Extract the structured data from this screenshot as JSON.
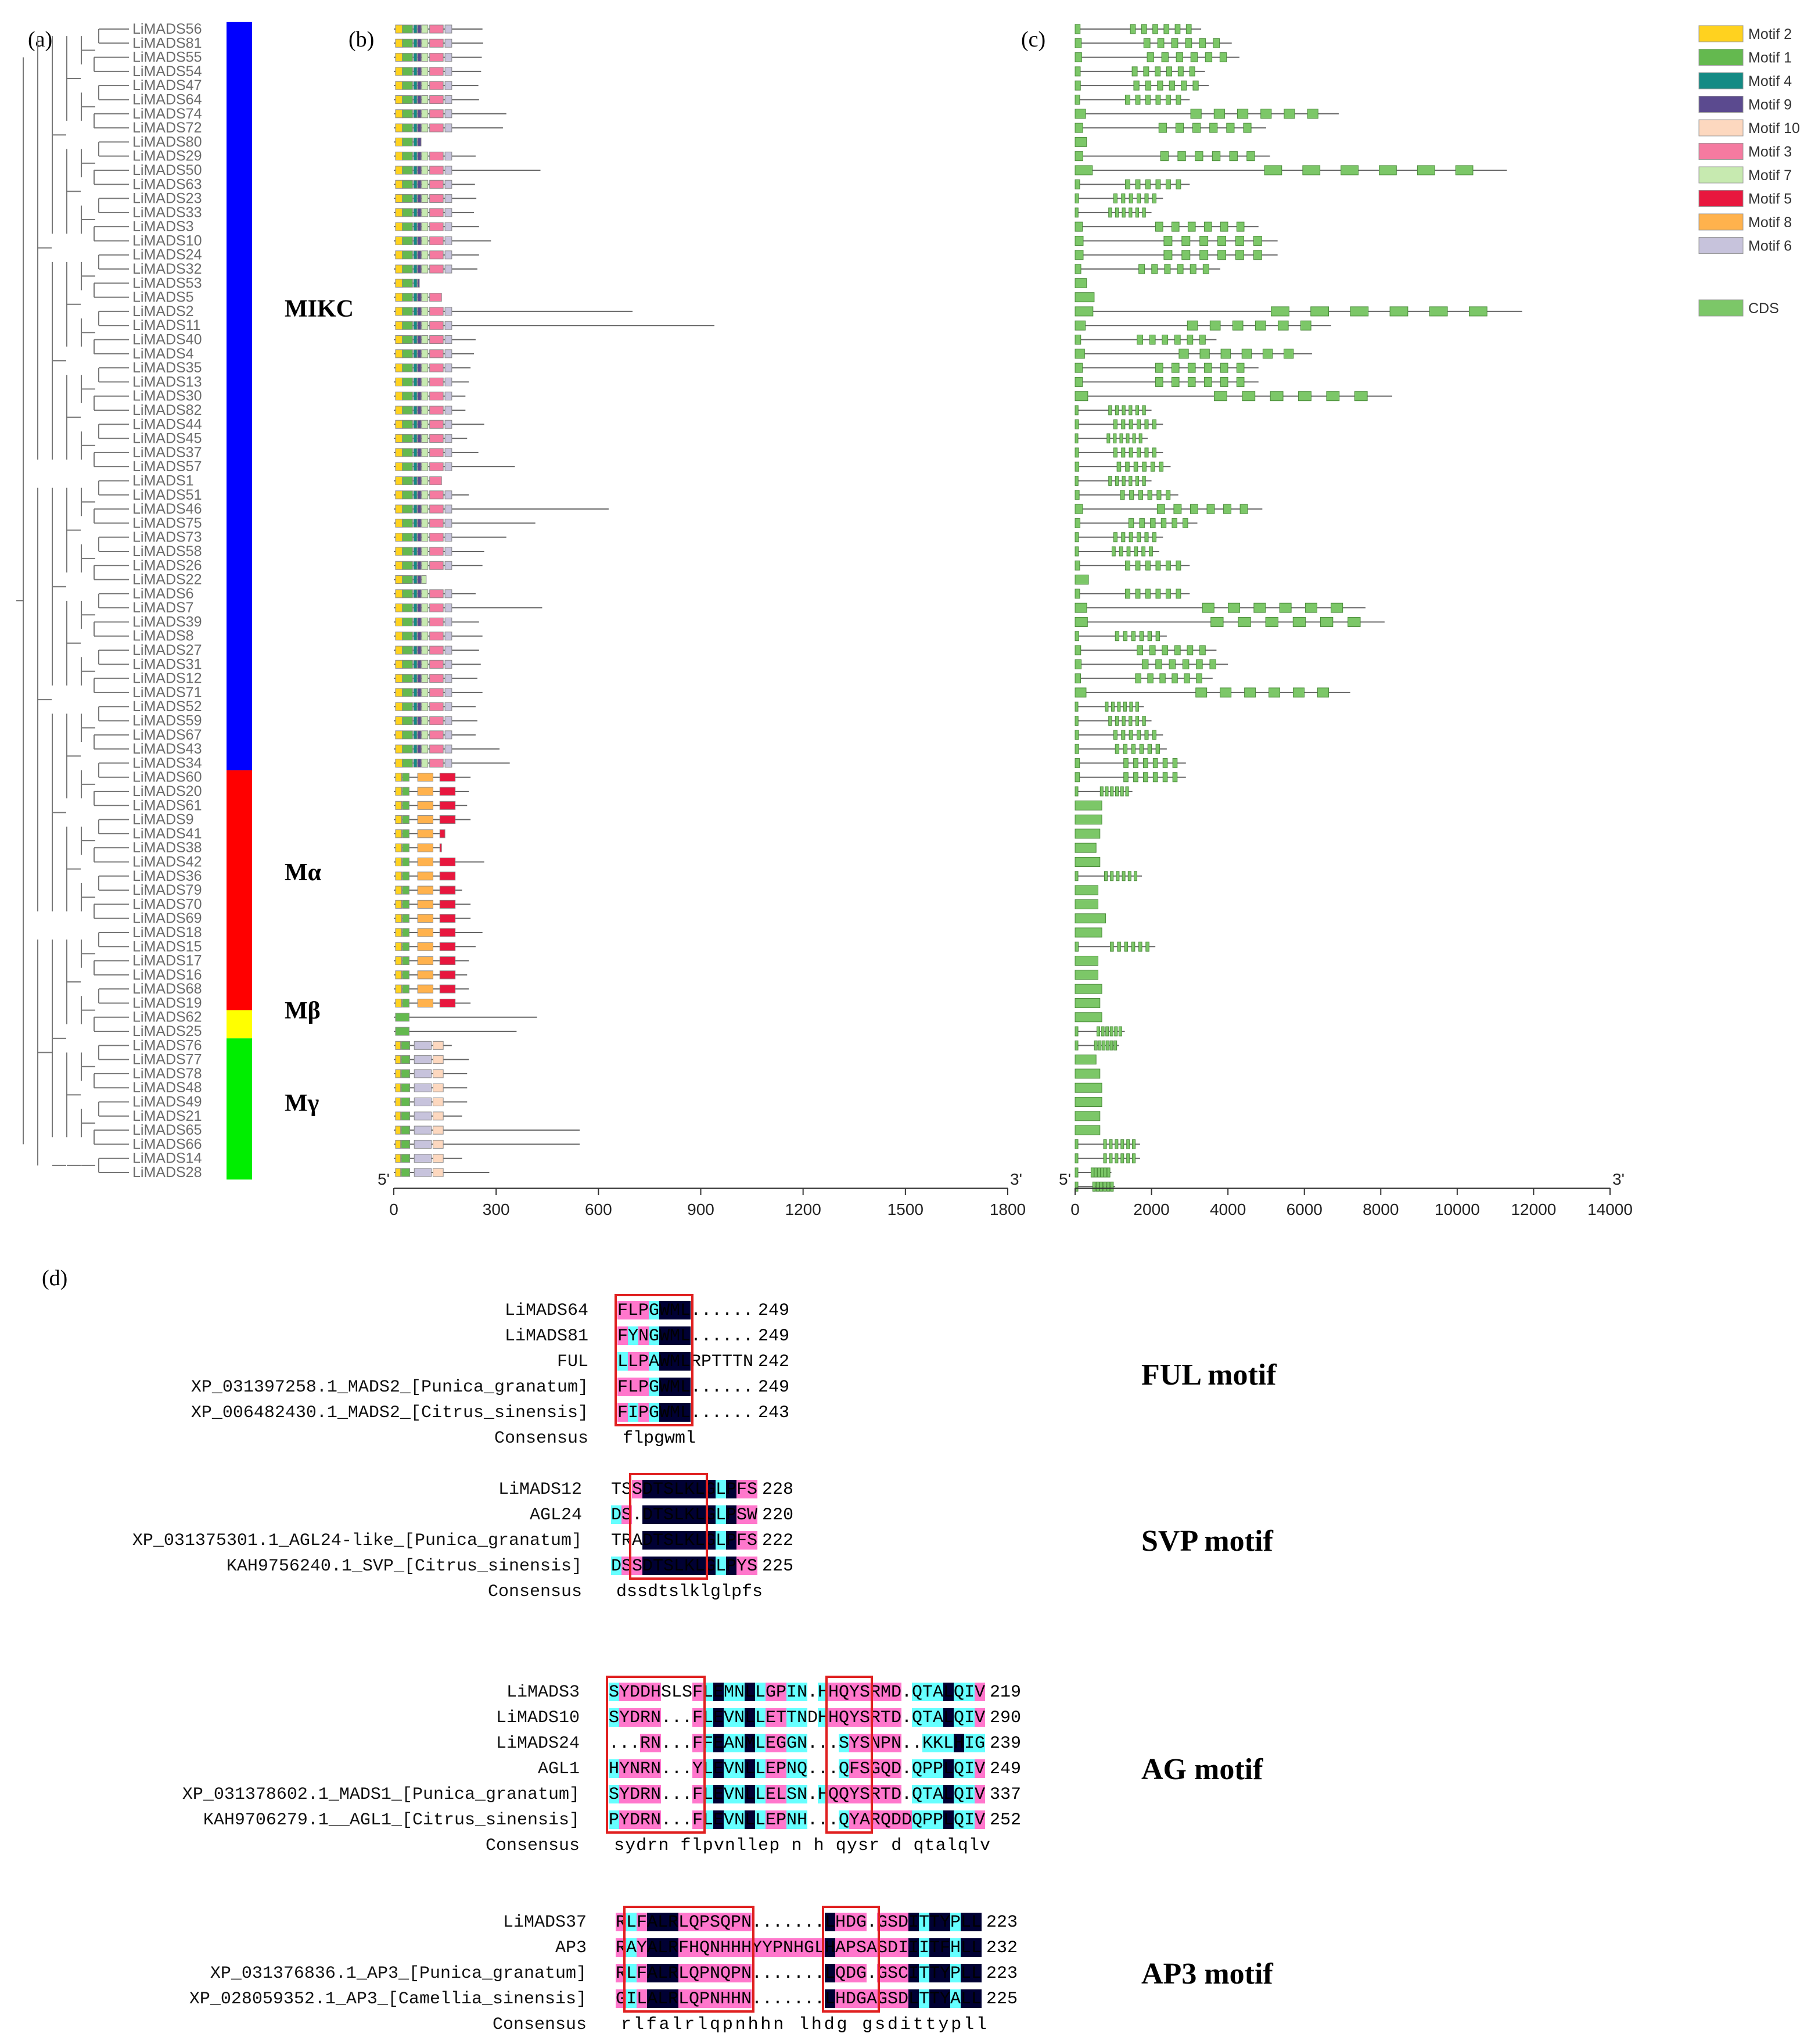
{
  "panels": {
    "a": "(a)",
    "b": "(b)",
    "c": "(c)",
    "d": "(d)"
  },
  "genes": [
    "LiMADS56",
    "LiMADS81",
    "LiMADS55",
    "LiMADS54",
    "LiMADS47",
    "LiMADS64",
    "LiMADS74",
    "LiMADS72",
    "LiMADS80",
    "LiMADS29",
    "LiMADS50",
    "LiMADS63",
    "LiMADS23",
    "LiMADS33",
    "LiMADS3",
    "LiMADS10",
    "LiMADS24",
    "LiMADS32",
    "LiMADS53",
    "LiMADS5",
    "LiMADS2",
    "LiMADS11",
    "LiMADS40",
    "LiMADS4",
    "LiMADS35",
    "LiMADS13",
    "LiMADS30",
    "LiMADS82",
    "LiMADS44",
    "LiMADS45",
    "LiMADS37",
    "LiMADS57",
    "LiMADS1",
    "LiMADS51",
    "LiMADS46",
    "LiMADS75",
    "LiMADS73",
    "LiMADS58",
    "LiMADS26",
    "LiMADS22",
    "LiMADS6",
    "LiMADS7",
    "LiMADS39",
    "LiMADS8",
    "LiMADS27",
    "LiMADS31",
    "LiMADS12",
    "LiMADS71",
    "LiMADS52",
    "LiMADS59",
    "LiMADS67",
    "LiMADS43",
    "LiMADS34",
    "LiMADS60",
    "LiMADS20",
    "LiMADS61",
    "LiMADS9",
    "LiMADS41",
    "LiMADS38",
    "LiMADS42",
    "LiMADS36",
    "LiMADS79",
    "LiMADS70",
    "LiMADS69",
    "LiMADS18",
    "LiMADS15",
    "LiMADS17",
    "LiMADS16",
    "LiMADS68",
    "LiMADS19",
    "LiMADS62",
    "LiMADS25",
    "LiMADS76",
    "LiMADS77",
    "LiMADS78",
    "LiMADS48",
    "LiMADS49",
    "LiMADS21",
    "LiMADS65",
    "LiMADS66",
    "LiMADS14",
    "LiMADS28"
  ],
  "groups": [
    {
      "name": "MIKC",
      "start": 0,
      "end": 52,
      "color": "#0000ff"
    },
    {
      "name": "Mα",
      "start": 53,
      "end": 69,
      "color": "#ff0000"
    },
    {
      "name": "Mβ",
      "start": 70,
      "end": 71,
      "color": "#ffff00"
    },
    {
      "name": "Mγ",
      "start": 72,
      "end": 81,
      "color": "#00ee00"
    }
  ],
  "protein_lengths": [
    260,
    262,
    258,
    256,
    248,
    250,
    330,
    320,
    80,
    240,
    430,
    238,
    242,
    235,
    250,
    285,
    250,
    245,
    75,
    140,
    700,
    940,
    240,
    235,
    225,
    220,
    210,
    210,
    265,
    215,
    248,
    355,
    140,
    220,
    630,
    415,
    330,
    265,
    260,
    95,
    240,
    435,
    250,
    260,
    250,
    255,
    245,
    260,
    240,
    245,
    240,
    310,
    340,
    225,
    220,
    215,
    225,
    150,
    140,
    265,
    180,
    200,
    225,
    225,
    260,
    240,
    220,
    215,
    220,
    225,
    420,
    360,
    170,
    220,
    215,
    215,
    215,
    200,
    545,
    545,
    200,
    280
  ],
  "gene_lengths": [
    3300,
    4100,
    4300,
    3400,
    3500,
    3000,
    6900,
    5000,
    300,
    5100,
    11300,
    3000,
    2300,
    2000,
    4800,
    5300,
    5300,
    3800,
    300,
    500,
    11700,
    6700,
    3700,
    6200,
    4800,
    4800,
    8300,
    2000,
    2300,
    1900,
    2300,
    2500,
    2000,
    2700,
    4900,
    3200,
    2300,
    2200,
    3000,
    350,
    3000,
    7600,
    8100,
    2400,
    3700,
    4000,
    3600,
    7200,
    1800,
    2000,
    2300,
    2400,
    2900,
    2900,
    1500,
    700,
    700,
    650,
    550,
    650,
    1750,
    600,
    600,
    800,
    700,
    2100,
    600,
    600,
    700,
    650,
    700,
    1300,
    1150,
    550,
    650,
    700,
    700,
    650,
    650,
    1700,
    1700,
    950,
    1050
  ],
  "cds_axis": {
    "ticks": [
      0,
      2000,
      4000,
      6000,
      8000,
      10000,
      12000,
      14000
    ],
    "max": 14000,
    "start_label": "5'",
    "end_label": "3'"
  },
  "protein_axis": {
    "ticks": [
      0,
      300,
      600,
      900,
      1200,
      1500,
      1800
    ],
    "max": 1800,
    "start_label": "5'",
    "end_label": "3'"
  },
  "legend": [
    {
      "name": "Motif 2",
      "color": "#ffd21f"
    },
    {
      "name": "Motif 1",
      "color": "#64b94f"
    },
    {
      "name": "Motif 4",
      "color": "#138a84"
    },
    {
      "name": "Motif 9",
      "color": "#5b4a8f"
    },
    {
      "name": "Motif 10",
      "color": "#fdd8bf"
    },
    {
      "name": "Motif 3",
      "color": "#f57aa0"
    },
    {
      "name": "Motif 7",
      "color": "#c7eab0"
    },
    {
      "name": "Motif 5",
      "color": "#e8173e"
    },
    {
      "name": "Motif 8",
      "color": "#ffb24d"
    },
    {
      "name": "Motif 6",
      "color": "#c7c3dc"
    },
    {
      "name": "CDS",
      "color": "#7cc768"
    }
  ],
  "alignments": [
    {
      "title": "FUL motif",
      "rows": [
        {
          "name": "LiMADS64",
          "seq": "FLPGWML......",
          "num": "249"
        },
        {
          "name": "LiMADS81",
          "seq": "FYNGWML......",
          "num": "249"
        },
        {
          "name": "FUL",
          "seq": "LLPAWMLRPTTTN",
          "num": "242"
        },
        {
          "name": "XP_031397258.1_MADS2_[Punica_granatum]",
          "seq": "FLPGWML......",
          "num": "249"
        },
        {
          "name": "XP_006482430.1_MADS2_[Citrus_sinensis]",
          "seq": "FIPGWML......",
          "num": "243"
        }
      ],
      "consensus_label": "Consensus",
      "consensus": "flpgwml",
      "colors": [
        "PPPCDDD",
        "PCPCDDD",
        "CPPCDDD",
        "PPPCDDD",
        "PCPCDDD"
      ]
    },
    {
      "title": "SVP motif",
      "rows": [
        {
          "name": "LiMADS12",
          "seq": "TSSDTSLKLGLPFS",
          "num": "228"
        },
        {
          "name": "AGL24",
          "seq": "DS.DTSLKLGLPSW",
          "num": "220"
        },
        {
          "name": "XP_031375301.1_AGL24-like_[Punica_granatum]",
          "seq": "TRADTSLKLGLPFS",
          "num": "222"
        },
        {
          "name": "KAH9756240.1_SVP_[Citrus_sinensis]",
          "seq": "DSSDTSLKLGLPYS",
          "num": "225"
        }
      ],
      "consensus_label": "Consensus",
      "consensus": "dssdtslklglpfs",
      "colors": [
        "..PDDDDDDDCDPP",
        "CP.DDDDDDDCDPP",
        "...DDDDDDDCDPP",
        "CPPDDDDDDDCDPP"
      ]
    },
    {
      "title": "AG motif",
      "rows": [
        {
          "name": "LiMADS3",
          "seq": "SYDDHSLSFLEMNLLGPIN.HHQYSRMD.QTALQIV",
          "num": "219"
        },
        {
          "name": "LiMADS10",
          "seq": "SYDRN...FLEVNLLETTNDHHQYSRTD.QTALQIV",
          "num": "290"
        },
        {
          "name": "LiMADS24",
          "seq": "...RN...FFEANMLEGGN...SYSNPN..KKLHIG",
          "num": "239"
        },
        {
          "name": "AGL1",
          "seq": "HYNRN...YLEVNLLEPNQ...QFSGQD.QPPLQIV",
          "num": "249"
        },
        {
          "name": "XP_031378602.1_MADS1_[Punica_granatum]",
          "seq": "SYDRN...FLEVNLLELSN.HQQYSRTD.QTALQIV",
          "num": "337"
        },
        {
          "name": "KAH9706279.1__AGL1_[Citrus_sinensis]",
          "seq": "PYDRN...FLEVNLLEPNH...QYARQDDQPPLQIV",
          "num": "252"
        }
      ],
      "consensus_label": "Consensus",
      "consensus": "sydrn   flpvnllep n h qysr d qtalqlv",
      "colors": [
        "CPPPP...PCDCCDCPPCC.CPPPPPPP.CCCDCCP",
        "CPPPP...PCDCCDCPPCC.CPPPPPPP.CCCDCCP",
        "...PP...PCDCCDCPPCC...CPPPPP..CCCDCC",
        "CPPPP...PCDCCDCPPCC...CPPPPP.CCCDCCP",
        "CPPPP...PCDCCDCPPCC.CPPPPPPP.CCCDCCP",
        "CPPPP...PCDCCDCPPCC...CPPPPPPCCCDCCP"
      ]
    },
    {
      "title": "AP3 motif",
      "rows": [
        {
          "name": "LiMADS37",
          "seq": "RLFALRLQPSQPN.......LHDG.GSDITTYPLL",
          "num": "223"
        },
        {
          "name": "AP3",
          "seq": "RAYALRFHQNHHHYYPNHGLHAPSASDIIITFHLL",
          "num": "232"
        },
        {
          "name": "XP_031376836.1_AP3_[Punica_granatum]",
          "seq": "RLFALRLQPNQPN.......LQDG.GSCITTYPLL",
          "num": "223"
        },
        {
          "name": "XP_028059352.1_AP3_[Camellia_sinensis]",
          "seq": "GILALRLQPNHHN.......LHDGAGSDLTTYALL",
          "num": "225"
        }
      ],
      "consensus_label": "Consensus",
      "consensus": "rlfalrlqpnhhn       lhdg gsdittypll",
      "colors": [
        "PCPDDDPPPPPPP.......DPPP.PPPDCDDCDD",
        "PCPDDDPPPPPPPPPPPPPPDPPPPPPPDCDDCDD",
        "PCPDDDPPPPPPP.......DPPP.PPPDCDDCDD",
        "PCPDDDPPPPPPP.......DPPPPPPPDCDDCDD"
      ]
    }
  ]
}
